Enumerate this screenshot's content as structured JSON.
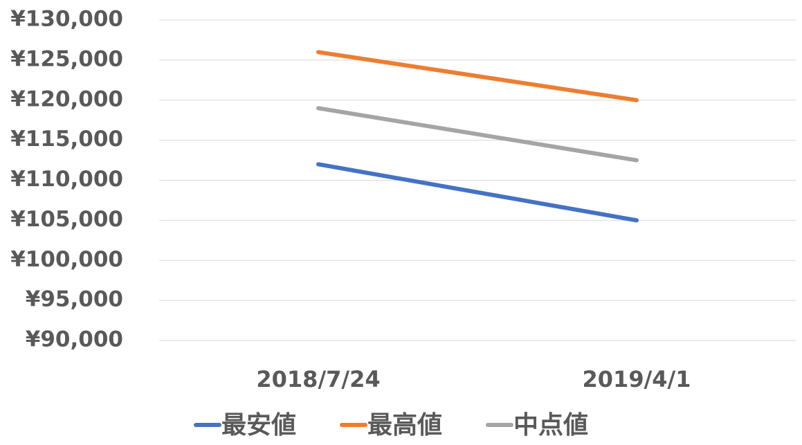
{
  "chart_data": {
    "type": "line",
    "categories": [
      "2018/7/24",
      "2019/4/1"
    ],
    "series": [
      {
        "name": "最安値",
        "color": "#4472c4",
        "values": [
          112000,
          105000
        ]
      },
      {
        "name": "最高値",
        "color": "#ed7d31",
        "values": [
          126000,
          120000
        ]
      },
      {
        "name": "中点値",
        "color": "#a5a5a5",
        "values": [
          119000,
          112500
        ]
      }
    ],
    "ylim": [
      90000,
      130000
    ],
    "yticks": [
      {
        "value": 90000,
        "label": "¥90,000"
      },
      {
        "value": 95000,
        "label": "¥95,000"
      },
      {
        "value": 100000,
        "label": "¥100,000"
      },
      {
        "value": 105000,
        "label": "¥105,000"
      },
      {
        "value": 110000,
        "label": "¥110,000"
      },
      {
        "value": 115000,
        "label": "¥115,000"
      },
      {
        "value": 120000,
        "label": "¥120,000"
      },
      {
        "value": 125000,
        "label": "¥125,000"
      },
      {
        "value": 130000,
        "label": "¥130,000"
      }
    ],
    "grid": true,
    "legend": "bottom"
  }
}
